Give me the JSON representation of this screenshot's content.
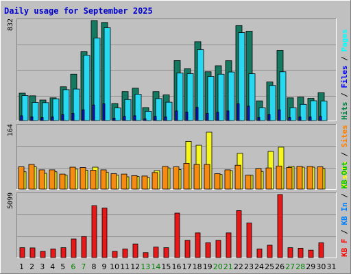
{
  "title": "Daily usage for September 2025",
  "chart_data": [
    {
      "type": "bar",
      "panel": "hits-files-pages",
      "categories": [
        "1",
        "2",
        "3",
        "4",
        "5",
        "6",
        "7",
        "8",
        "9",
        "10",
        "11",
        "12",
        "13",
        "14",
        "15",
        "16",
        "17",
        "18",
        "19",
        "20",
        "21",
        "22",
        "23",
        "24",
        "25",
        "26",
        "27",
        "28",
        "29",
        "30",
        "31"
      ],
      "weekend_days": [
        "6",
        "7",
        "13",
        "14",
        "20",
        "21",
        "27",
        "28"
      ],
      "y_max_label": "832",
      "ylim": [
        0,
        832
      ],
      "legend": [
        {
          "text": "Hits",
          "color": "#008040"
        },
        {
          "text": "Files",
          "color": "#0000ff"
        },
        {
          "text": "Pages",
          "color": "#00ffff"
        }
      ],
      "series": [
        {
          "name": "Hits",
          "color": "#157860",
          "values": [
            228,
            206,
            171,
            189,
            281,
            386,
            573,
            832,
            816,
            141,
            241,
            270,
            108,
            241,
            214,
            499,
            432,
            656,
            406,
            456,
            498,
            790,
            744,
            164,
            321,
            584,
            189,
            195,
            185,
            232,
            0
          ]
        },
        {
          "name": "Files",
          "color": "#28d8f0",
          "values": [
            208,
            151,
            149,
            181,
            257,
            262,
            543,
            686,
            772,
            105,
            175,
            219,
            77,
            183,
            153,
            395,
            391,
            590,
            367,
            386,
            404,
            732,
            390,
            107,
            292,
            406,
            107,
            135,
            165,
            162,
            0
          ]
        },
        {
          "name": "Pages",
          "color": "#1010c8",
          "values": [
            40,
            30,
            25,
            30,
            50,
            60,
            90,
            130,
            140,
            20,
            35,
            40,
            15,
            35,
            30,
            80,
            70,
            110,
            60,
            70,
            80,
            140,
            120,
            25,
            50,
            90,
            25,
            30,
            30,
            35,
            0
          ]
        }
      ]
    },
    {
      "type": "bar",
      "panel": "visits-sites",
      "categories": [
        "1",
        "2",
        "3",
        "4",
        "5",
        "6",
        "7",
        "8",
        "9",
        "10",
        "11",
        "12",
        "13",
        "14",
        "15",
        "16",
        "17",
        "18",
        "19",
        "20",
        "21",
        "22",
        "23",
        "24",
        "25",
        "26",
        "27",
        "28",
        "29",
        "30",
        "31"
      ],
      "y_max_label": "164",
      "ylim": [
        0,
        164
      ],
      "legend": [
        {
          "text": "Visits",
          "color": "#ffff00"
        },
        {
          "text": "Sites",
          "color": "#ff8000"
        }
      ],
      "series": [
        {
          "name": "Visits",
          "color": "#f5f520",
          "values": [
            45,
            58,
            41,
            45,
            36,
            52,
            49,
            57,
            44,
            36,
            32,
            33,
            30,
            48,
            55,
            51,
            124,
            114,
            148,
            38,
            48,
            93,
            36,
            46,
            98,
            109,
            59,
            57,
            57,
            53,
            0
          ]
        },
        {
          "name": "Sites",
          "color": "#f78a10",
          "values": [
            58,
            64,
            50,
            50,
            39,
            57,
            56,
            49,
            50,
            40,
            39,
            35,
            34,
            43,
            59,
            58,
            67,
            64,
            64,
            40,
            50,
            62,
            36,
            53,
            55,
            60,
            56,
            59,
            59,
            58,
            0
          ]
        }
      ]
    },
    {
      "type": "bar",
      "panel": "kbytes",
      "categories": [
        "1",
        "2",
        "3",
        "4",
        "5",
        "6",
        "7",
        "8",
        "9",
        "10",
        "11",
        "12",
        "13",
        "14",
        "15",
        "16",
        "17",
        "18",
        "19",
        "20",
        "21",
        "22",
        "23",
        "24",
        "25",
        "26",
        "27",
        "28",
        "29",
        "30",
        "31"
      ],
      "y_max_label": "5099",
      "ylim": [
        0,
        5099
      ],
      "legend": [
        {
          "text": "KB F",
          "color": "#ff0000"
        },
        {
          "text": "KB In",
          "color": "#0080ff"
        },
        {
          "text": "KB Out",
          "color": "#00c000"
        }
      ],
      "series": [
        {
          "name": "KB F",
          "color": "#e81818",
          "values": [
            800,
            780,
            500,
            700,
            800,
            1500,
            1700,
            4200,
            4000,
            500,
            700,
            1100,
            400,
            850,
            800,
            3600,
            1400,
            2000,
            1200,
            1400,
            2000,
            3800,
            2800,
            700,
            1000,
            5099,
            800,
            750,
            600,
            1200,
            0
          ]
        }
      ]
    }
  ]
}
